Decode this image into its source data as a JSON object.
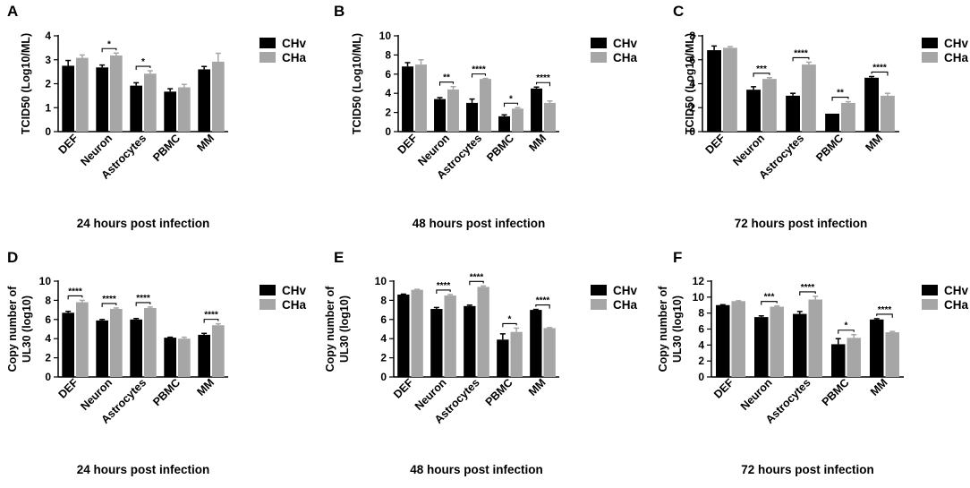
{
  "colors": {
    "chv": "#000000",
    "cha": "#a6a6a6",
    "axis": "#000000"
  },
  "chart_data": [
    {
      "panel": "A",
      "type": "bar",
      "title": "24 hours post infection",
      "ylabel": "TCID50 (Log10/ML)",
      "ylim": [
        0,
        4
      ],
      "yticks": [
        "0",
        "1",
        "2",
        "3",
        "4"
      ],
      "categories": [
        "DEF",
        "Neuron",
        "Astrocytes",
        "PBMC",
        "MM"
      ],
      "series": [
        {
          "name": "CHv",
          "values": [
            2.75,
            2.68,
            1.92,
            1.67,
            2.6
          ],
          "errors": [
            0.22,
            0.1,
            0.12,
            0.12,
            0.12
          ]
        },
        {
          "name": "CHa",
          "values": [
            3.08,
            3.18,
            2.42,
            1.85,
            2.92
          ],
          "errors": [
            0.12,
            0.1,
            0.12,
            0.12,
            0.35
          ]
        }
      ],
      "significance": [
        {
          "category": 1,
          "label": "*"
        },
        {
          "category": 2,
          "label": "*"
        }
      ]
    },
    {
      "panel": "B",
      "type": "bar",
      "title": "48 hours post infection",
      "ylabel": "TCID50 (Log10/ML)",
      "ylim": [
        0,
        10
      ],
      "yticks": [
        "0",
        "2",
        "4",
        "6",
        "8",
        "10"
      ],
      "categories": [
        "DEF",
        "Neuron",
        "Astrocytes",
        "PBMC",
        "MM"
      ],
      "series": [
        {
          "name": "CHv",
          "values": [
            6.8,
            3.4,
            3.0,
            1.6,
            4.5
          ],
          "errors": [
            0.4,
            0.15,
            0.4,
            0.15,
            0.15
          ]
        },
        {
          "name": "CHa",
          "values": [
            7.0,
            4.4,
            5.5,
            2.4,
            3.0
          ],
          "errors": [
            0.5,
            0.3,
            0.05,
            0.1,
            0.2
          ]
        }
      ],
      "significance": [
        {
          "category": 1,
          "label": "**"
        },
        {
          "category": 2,
          "label": "****"
        },
        {
          "category": 3,
          "label": "*"
        },
        {
          "category": 4,
          "label": "****"
        }
      ]
    },
    {
      "panel": "C",
      "type": "bar",
      "title": "72 hours post infection",
      "ylabel": "TCID50 (Log10/ML)",
      "ylim": [
        0,
        8
      ],
      "yticks": [
        "0",
        "2",
        "4",
        "6",
        "8"
      ],
      "categories": [
        "DEF",
        "Neuron",
        "Astrocytes",
        "PBMC",
        "MM"
      ],
      "series": [
        {
          "name": "CHv",
          "values": [
            6.8,
            3.5,
            3.0,
            1.5,
            4.5
          ],
          "errors": [
            0.35,
            0.25,
            0.2,
            0.0,
            0.1
          ]
        },
        {
          "name": "CHa",
          "values": [
            7.0,
            4.4,
            5.6,
            2.4,
            3.0
          ],
          "errors": [
            0.1,
            0.1,
            0.2,
            0.1,
            0.2
          ]
        }
      ],
      "significance": [
        {
          "category": 1,
          "label": "***"
        },
        {
          "category": 2,
          "label": "****"
        },
        {
          "category": 3,
          "label": "**"
        },
        {
          "category": 4,
          "label": "****"
        }
      ]
    },
    {
      "panel": "D",
      "type": "bar",
      "title": "24 hours post infection",
      "ylabel": "Copy number of UL30 (log10)",
      "ylim": [
        0,
        10
      ],
      "yticks": [
        "0",
        "2",
        "4",
        "6",
        "8",
        "10"
      ],
      "categories": [
        "DEF",
        "Neuron",
        "Astrocytes",
        "PBMC",
        "MM"
      ],
      "series": [
        {
          "name": "CHv",
          "values": [
            6.7,
            5.9,
            6.0,
            4.1,
            4.4
          ],
          "errors": [
            0.15,
            0.1,
            0.1,
            0.05,
            0.15
          ]
        },
        {
          "name": "CHa",
          "values": [
            7.8,
            7.1,
            7.2,
            4.0,
            5.4
          ],
          "errors": [
            0.2,
            0.1,
            0.1,
            0.15,
            0.15
          ]
        }
      ],
      "significance": [
        {
          "category": 0,
          "label": "****"
        },
        {
          "category": 1,
          "label": "****"
        },
        {
          "category": 2,
          "label": "****"
        },
        {
          "category": 4,
          "label": "****"
        }
      ]
    },
    {
      "panel": "E",
      "type": "bar",
      "title": "48 hours post infection",
      "ylabel": "Copy number of UL30 (log10)",
      "ylim": [
        0,
        10
      ],
      "yticks": [
        "0",
        "2",
        "4",
        "6",
        "8",
        "10"
      ],
      "categories": [
        "DEF",
        "Neuron",
        "Astrocytes",
        "PBMC",
        "MM"
      ],
      "series": [
        {
          "name": "CHv",
          "values": [
            8.6,
            7.1,
            7.4,
            3.9,
            7.0
          ],
          "errors": [
            0.05,
            0.15,
            0.1,
            0.6,
            0.05
          ]
        },
        {
          "name": "CHa",
          "values": [
            9.1,
            8.5,
            9.4,
            4.7,
            5.1
          ],
          "errors": [
            0.05,
            0.1,
            0.1,
            0.4,
            0.05
          ]
        }
      ],
      "significance": [
        {
          "category": 1,
          "label": "****"
        },
        {
          "category": 2,
          "label": "****"
        },
        {
          "category": 3,
          "label": "*"
        },
        {
          "category": 4,
          "label": "****"
        }
      ]
    },
    {
      "panel": "F",
      "type": "bar",
      "title": "72 hours post infection",
      "ylabel": "Copy number of UL30 (log10)",
      "ylim": [
        0,
        12
      ],
      "yticks": [
        "0",
        "2",
        "4",
        "6",
        "8",
        "10",
        "12"
      ],
      "categories": [
        "DEF",
        "Neuron",
        "Astrocytes",
        "PBMC",
        "MM"
      ],
      "series": [
        {
          "name": "CHv",
          "values": [
            9.0,
            7.5,
            7.9,
            4.1,
            7.2
          ],
          "errors": [
            0.05,
            0.15,
            0.3,
            0.7,
            0.1
          ]
        },
        {
          "name": "CHa",
          "values": [
            9.5,
            8.8,
            9.7,
            4.9,
            5.6
          ],
          "errors": [
            0.05,
            0.1,
            0.4,
            0.4,
            0.1
          ]
        }
      ],
      "significance": [
        {
          "category": 1,
          "label": "***"
        },
        {
          "category": 2,
          "label": "****"
        },
        {
          "category": 3,
          "label": "*"
        },
        {
          "category": 4,
          "label": "****"
        }
      ]
    }
  ]
}
